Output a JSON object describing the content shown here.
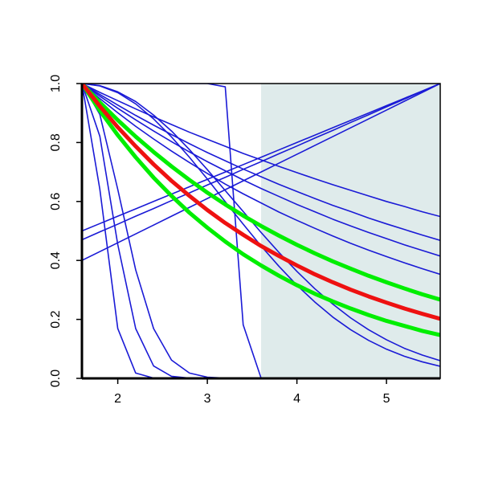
{
  "chart_data": {
    "type": "line",
    "xlim": [
      1.6,
      5.6
    ],
    "ylim": [
      0,
      1
    ],
    "xticks": [
      2,
      3,
      4,
      5
    ],
    "yticks": [
      {
        "value": 0,
        "label": "0.0"
      },
      0.2,
      0.4,
      0.6,
      0.8,
      {
        "value": 1,
        "label": "1.0"
      }
    ],
    "shaded_region": {
      "xlim": [
        3.6,
        5.6
      ],
      "color": "#dfebeb"
    },
    "x": [
      1.6,
      1.8,
      2.0,
      2.2,
      2.4,
      2.6,
      2.8,
      3.0,
      3.2,
      3.4,
      3.6,
      3.8,
      4.0,
      4.2,
      4.4,
      4.6,
      4.8,
      5.0,
      5.2,
      5.4,
      5.6
    ],
    "series": [
      {
        "color": "#1a1ad6",
        "values": [
          1,
          0.97,
          0.942,
          0.914,
          0.887,
          0.861,
          0.835,
          0.811,
          0.787,
          0.763,
          0.741,
          0.719,
          0.698,
          0.677,
          0.657,
          0.638,
          0.619,
          0.6,
          0.583,
          0.565,
          0.549
        ]
      },
      {
        "color": "#1a1ad6",
        "values": [
          1,
          0.963,
          0.927,
          0.892,
          0.859,
          0.827,
          0.796,
          0.766,
          0.738,
          0.71,
          0.684,
          0.658,
          0.634,
          0.61,
          0.587,
          0.566,
          0.544,
          0.524,
          0.505,
          0.486,
          0.468
        ]
      },
      {
        "color": "#1a1ad6",
        "values": [
          1,
          0.957,
          0.916,
          0.877,
          0.839,
          0.803,
          0.768,
          0.735,
          0.704,
          0.673,
          0.644,
          0.617,
          0.59,
          0.565,
          0.54,
          0.517,
          0.495,
          0.474,
          0.453,
          0.434,
          0.415
        ]
      },
      {
        "color": "#1a1ad6",
        "values": [
          1,
          0.949,
          0.901,
          0.855,
          0.812,
          0.771,
          0.732,
          0.695,
          0.659,
          0.626,
          0.595,
          0.564,
          0.536,
          0.509,
          0.483,
          0.458,
          0.435,
          0.413,
          0.392,
          0.372,
          0.353
        ]
      },
      {
        "color": "#1a1ad6",
        "values": [
          1,
          0.993,
          0.972,
          0.939,
          0.893,
          0.839,
          0.776,
          0.708,
          0.637,
          0.566,
          0.495,
          0.427,
          0.363,
          0.304,
          0.252,
          0.205,
          0.165,
          0.131,
          0.102,
          0.079,
          0.06
        ]
      },
      {
        "color": "#1a1ad6",
        "values": [
          1,
          0.992,
          0.969,
          0.931,
          0.88,
          0.819,
          0.75,
          0.676,
          0.599,
          0.523,
          0.449,
          0.38,
          0.316,
          0.259,
          0.208,
          0.165,
          0.129,
          0.099,
          0.075,
          0.056,
          0.041
        ]
      },
      {
        "color": "#1a1ad6",
        "values": [
          1,
          0.641,
          0.169,
          0.018,
          0.001,
          0,
          0,
          0,
          0,
          0,
          0,
          0,
          0,
          0,
          0,
          0,
          0,
          0,
          0,
          0,
          0
        ]
      },
      {
        "color": "#1a1ad6",
        "values": [
          1,
          0.821,
          0.454,
          0.169,
          0.042,
          0.007,
          0.001,
          0,
          0,
          0,
          0,
          0,
          0,
          0,
          0,
          0,
          0,
          0,
          0,
          0,
          0
        ]
      },
      {
        "color": "#1a1ad6",
        "values": [
          1,
          0.895,
          0.641,
          0.368,
          0.169,
          0.062,
          0.018,
          0.004,
          0.001,
          0,
          0,
          0,
          0,
          0,
          0,
          0,
          0,
          0,
          0,
          0,
          0
        ]
      },
      {
        "color": "#1a1ad6",
        "values": [
          1,
          1,
          1,
          1,
          1,
          1,
          1,
          1,
          0.989,
          0.182,
          0.001,
          0,
          0,
          0,
          0,
          0,
          0,
          0,
          0,
          0,
          0
        ]
      },
      {
        "color": "#1a1ad6",
        "values": [
          0.4,
          0.43,
          0.46,
          0.49,
          0.52,
          0.55,
          0.58,
          0.61,
          0.64,
          0.67,
          0.7,
          0.73,
          0.76,
          0.79,
          0.82,
          0.85,
          0.88,
          0.91,
          0.94,
          0.97,
          1
        ]
      },
      {
        "color": "#1a1ad6",
        "values": [
          0.47,
          0.497,
          0.523,
          0.55,
          0.576,
          0.603,
          0.629,
          0.656,
          0.682,
          0.709,
          0.735,
          0.762,
          0.788,
          0.815,
          0.841,
          0.868,
          0.894,
          0.921,
          0.947,
          0.974,
          1
        ]
      },
      {
        "color": "#1a1ad6",
        "values": [
          0.5,
          0.525,
          0.55,
          0.575,
          0.6,
          0.625,
          0.65,
          0.675,
          0.7,
          0.725,
          0.75,
          0.775,
          0.8,
          0.825,
          0.85,
          0.875,
          0.9,
          0.925,
          0.95,
          0.975,
          1
        ]
      },
      {
        "color": "#00ee00",
        "highlight": true,
        "values": [
          1,
          0.936,
          0.876,
          0.82,
          0.768,
          0.719,
          0.673,
          0.63,
          0.59,
          0.552,
          0.517,
          0.484,
          0.453,
          0.424,
          0.397,
          0.372,
          0.348,
          0.326,
          0.305,
          0.285,
          0.267
        ]
      },
      {
        "color": "#00ee00",
        "highlight": true,
        "values": [
          1,
          0.908,
          0.825,
          0.75,
          0.681,
          0.619,
          0.562,
          0.511,
          0.464,
          0.421,
          0.383,
          0.348,
          0.316,
          0.287,
          0.261,
          0.237,
          0.215,
          0.195,
          0.178,
          0.161,
          0.147
        ]
      },
      {
        "color": "#ee1111",
        "highlight": true,
        "values": [
          1,
          0.923,
          0.852,
          0.787,
          0.726,
          0.67,
          0.619,
          0.571,
          0.527,
          0.487,
          0.449,
          0.415,
          0.383,
          0.353,
          0.326,
          0.301,
          0.278,
          0.257,
          0.237,
          0.219,
          0.202
        ]
      }
    ]
  }
}
